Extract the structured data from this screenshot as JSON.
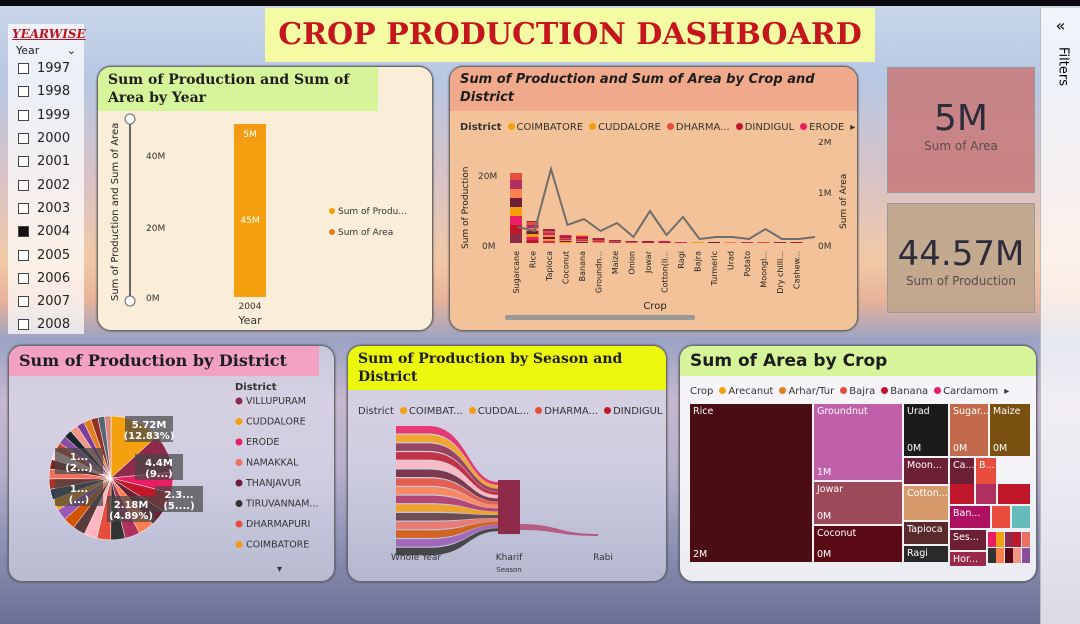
{
  "title": "CROP PRODUCTION DASHBOARD",
  "slicer": {
    "header": "YEARWISE",
    "field": "Year",
    "items": [
      {
        "label": "1997",
        "checked": false
      },
      {
        "label": "1998",
        "checked": false
      },
      {
        "label": "1999",
        "checked": false
      },
      {
        "label": "2000",
        "checked": false
      },
      {
        "label": "2001",
        "checked": false
      },
      {
        "label": "2002",
        "checked": false
      },
      {
        "label": "2003",
        "checked": false
      },
      {
        "label": "2004",
        "checked": true
      },
      {
        "label": "2005",
        "checked": false
      },
      {
        "label": "2006",
        "checked": false
      },
      {
        "label": "2007",
        "checked": false
      },
      {
        "label": "2008",
        "checked": false
      }
    ]
  },
  "kpis": [
    {
      "value": "5M",
      "label": "Sum of Area"
    },
    {
      "value": "44.57M",
      "label": "Sum of Production"
    }
  ],
  "filters_label": "Filters",
  "year_chart": {
    "title": "Sum of Production and Sum of Area by Year",
    "ylabel": "Sum of Production and Sum of Area",
    "xlabel": "Year",
    "ticks": [
      "0M",
      "20M",
      "40M"
    ],
    "category": "2004",
    "area_label": "5M",
    "production_label": "45M",
    "legend": [
      "Sum of Produ...",
      "Sum of Area"
    ]
  },
  "crop_district": {
    "title": "Sum of Production and Sum of Area by Crop and District",
    "legend_title": "District",
    "legend": [
      "COIMBATORE",
      "CUDDALORE",
      "DHARMA...",
      "DINDIGUL",
      "ERODE"
    ],
    "ylabel_left": "Sum of Production",
    "ylabel_right": "Sum of Area",
    "xlabel": "Crop",
    "left_ticks": [
      "0M",
      "20M"
    ],
    "right_ticks": [
      "0M",
      "1M",
      "2M"
    ],
    "crops": [
      "Sugarcane",
      "Rice",
      "Tapioca",
      "Coconut",
      "Banana",
      "Groundn...",
      "Maize",
      "Onion",
      "Jowar",
      "Cotton(li...",
      "Ragi",
      "Bajra",
      "Turmeric",
      "Urad",
      "Potato",
      "Moongl...",
      "Dry chilli...",
      "Cashew..."
    ]
  },
  "district_pie": {
    "title": "Sum of Production by District",
    "legend_title": "District",
    "legend": [
      "VILLUPURAM",
      "CUDDALORE",
      "ERODE",
      "NAMAKKAL",
      "THANJAVUR",
      "TIRUVANNAM...",
      "DHARMAPURI",
      "COIMBATORE"
    ],
    "labels": [
      "5.72M (12.83%)",
      "4.4M (9...)",
      "2.3... (5....)",
      "2.18M (4.89%)",
      "1... (2...)",
      "1... (...)"
    ]
  },
  "season": {
    "title": "Sum of Production by Season and District",
    "legend_title": "District",
    "legend": [
      "COIMBAT...",
      "CUDDAL...",
      "DHARMA...",
      "DINDIGUL"
    ],
    "seasons": [
      "Whole Year",
      "Kharif",
      "Rabi"
    ],
    "xlabel": "Season"
  },
  "treemap": {
    "title": "Sum of Area by Crop",
    "legend_title": "Crop",
    "legend": [
      "Arecanut",
      "Arhar/Tur",
      "Bajra",
      "Banana",
      "Cardamom"
    ],
    "cells": {
      "rice": "Rice",
      "rice_val": "2M",
      "groundnut": "Groundnut",
      "groundnut_val": "1M",
      "jowar": "Jowar",
      "jowar_val": "0M",
      "coconut": "Coconut",
      "coconut_val": "0M",
      "urad": "Urad",
      "urad_val": "0M",
      "sugar": "Sugar...",
      "sugar_val": "0M",
      "maize": "Maize",
      "maize_val": "0M",
      "moon": "Moon...",
      "ca": "Ca...",
      "b": "B...",
      "om1": "0M",
      "om2": "0M",
      "om3": "0M",
      "cotton": "Cotton...",
      "ban": "Ban...",
      "tapioca": "Tapioca",
      "ses": "Ses...",
      "ragi": "Ragi",
      "hor": "Hor..."
    }
  },
  "colors": {
    "title_red": "#c4161c",
    "title_bg": "#f4fba3",
    "bar_orange": "#f5a00f",
    "line_gray": "#6e6e6e",
    "treemap_rice": "#4a0d14"
  }
}
